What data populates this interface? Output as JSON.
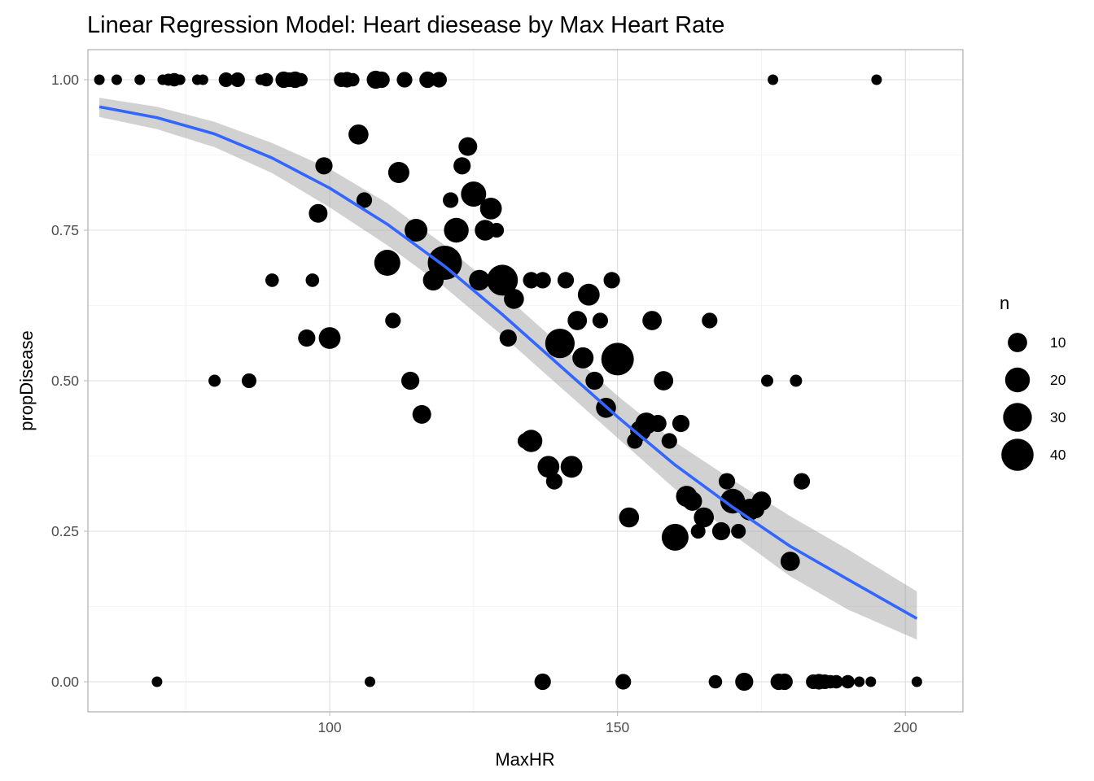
{
  "chart_data": {
    "type": "scatter",
    "title": "Linear Regression Model: Heart diesease by Max Heart Rate",
    "xlabel": "MaxHR",
    "ylabel": "propDisease",
    "xlim": [
      58,
      210
    ],
    "ylim": [
      -0.05,
      1.05
    ],
    "x_ticks": [
      100,
      150,
      200
    ],
    "x_tick_labels": [
      "100",
      "150",
      "200"
    ],
    "y_ticks": [
      0,
      0.25,
      0.5,
      0.75,
      1
    ],
    "y_tick_labels": [
      "0.00",
      "0.25",
      "0.50",
      "0.75",
      "1.00"
    ],
    "grid": true,
    "legend": {
      "title": "n",
      "placement": "right",
      "entries": [
        {
          "label": "10",
          "n": 10
        },
        {
          "label": "20",
          "n": 20
        },
        {
          "label": "30",
          "n": 30
        },
        {
          "label": "40",
          "n": 40
        }
      ]
    },
    "colors": {
      "points": "#000000",
      "fit_line": "#3366ff",
      "confidence_band": "#999999"
    },
    "fit": {
      "type": "logistic",
      "x": [
        60,
        70,
        80,
        90,
        100,
        110,
        120,
        130,
        140,
        150,
        160,
        170,
        180,
        190,
        202
      ],
      "y": [
        0.955,
        0.937,
        0.91,
        0.87,
        0.82,
        0.76,
        0.69,
        0.61,
        0.525,
        0.44,
        0.36,
        0.29,
        0.225,
        0.17,
        0.105
      ],
      "lower": [
        0.938,
        0.918,
        0.888,
        0.845,
        0.788,
        0.725,
        0.655,
        0.575,
        0.49,
        0.405,
        0.32,
        0.245,
        0.175,
        0.12,
        0.07
      ],
      "upper": [
        0.97,
        0.955,
        0.93,
        0.895,
        0.852,
        0.795,
        0.725,
        0.645,
        0.56,
        0.475,
        0.398,
        0.335,
        0.275,
        0.22,
        0.15
      ]
    },
    "points": [
      {
        "x": 60,
        "y": 1,
        "n": 1
      },
      {
        "x": 63,
        "y": 1,
        "n": 1
      },
      {
        "x": 67,
        "y": 1,
        "n": 1
      },
      {
        "x": 71,
        "y": 1,
        "n": 1
      },
      {
        "x": 72,
        "y": 1,
        "n": 2
      },
      {
        "x": 73,
        "y": 1,
        "n": 3
      },
      {
        "x": 74,
        "y": 1,
        "n": 1
      },
      {
        "x": 77,
        "y": 1,
        "n": 1
      },
      {
        "x": 78,
        "y": 1,
        "n": 1
      },
      {
        "x": 82,
        "y": 1,
        "n": 4
      },
      {
        "x": 84,
        "y": 1,
        "n": 4
      },
      {
        "x": 88,
        "y": 1,
        "n": 1
      },
      {
        "x": 89,
        "y": 1,
        "n": 3
      },
      {
        "x": 92,
        "y": 1,
        "n": 6
      },
      {
        "x": 93,
        "y": 1,
        "n": 4
      },
      {
        "x": 94,
        "y": 1,
        "n": 6
      },
      {
        "x": 95,
        "y": 1,
        "n": 3
      },
      {
        "x": 102,
        "y": 1,
        "n": 4
      },
      {
        "x": 103,
        "y": 1,
        "n": 5
      },
      {
        "x": 104,
        "y": 1,
        "n": 3
      },
      {
        "x": 108,
        "y": 1,
        "n": 8
      },
      {
        "x": 109,
        "y": 1,
        "n": 6
      },
      {
        "x": 113,
        "y": 1,
        "n": 5
      },
      {
        "x": 117,
        "y": 1,
        "n": 6
      },
      {
        "x": 119,
        "y": 1,
        "n": 5
      },
      {
        "x": 177,
        "y": 1,
        "n": 1
      },
      {
        "x": 195,
        "y": 1,
        "n": 1
      },
      {
        "x": 70,
        "y": 0,
        "n": 1
      },
      {
        "x": 107,
        "y": 0,
        "n": 1
      },
      {
        "x": 137,
        "y": 0,
        "n": 6
      },
      {
        "x": 151,
        "y": 0,
        "n": 5
      },
      {
        "x": 167,
        "y": 0,
        "n": 3
      },
      {
        "x": 172,
        "y": 0,
        "n": 8
      },
      {
        "x": 178,
        "y": 0,
        "n": 6
      },
      {
        "x": 179,
        "y": 0,
        "n": 6
      },
      {
        "x": 184,
        "y": 0,
        "n": 4
      },
      {
        "x": 185,
        "y": 0,
        "n": 5
      },
      {
        "x": 186,
        "y": 0,
        "n": 4
      },
      {
        "x": 187,
        "y": 0,
        "n": 3
      },
      {
        "x": 188,
        "y": 0,
        "n": 3
      },
      {
        "x": 190,
        "y": 0,
        "n": 3
      },
      {
        "x": 192,
        "y": 0,
        "n": 1
      },
      {
        "x": 194,
        "y": 0,
        "n": 1
      },
      {
        "x": 202,
        "y": 0,
        "n": 1
      },
      {
        "x": 99,
        "y": 0.857,
        "n": 7
      },
      {
        "x": 105,
        "y": 0.909,
        "n": 11
      },
      {
        "x": 106,
        "y": 0.8,
        "n": 5
      },
      {
        "x": 98,
        "y": 0.778,
        "n": 9
      },
      {
        "x": 90,
        "y": 0.667,
        "n": 3
      },
      {
        "x": 97,
        "y": 0.667,
        "n": 3
      },
      {
        "x": 96,
        "y": 0.571,
        "n": 7
      },
      {
        "x": 100,
        "y": 0.571,
        "n": 14
      },
      {
        "x": 80,
        "y": 0.5,
        "n": 2
      },
      {
        "x": 86,
        "y": 0.5,
        "n": 4
      },
      {
        "x": 110,
        "y": 0.696,
        "n": 23
      },
      {
        "x": 112,
        "y": 0.846,
        "n": 13
      },
      {
        "x": 111,
        "y": 0.6,
        "n": 5
      },
      {
        "x": 114,
        "y": 0.5,
        "n": 8
      },
      {
        "x": 116,
        "y": 0.444,
        "n": 9
      },
      {
        "x": 115,
        "y": 0.75,
        "n": 16
      },
      {
        "x": 118,
        "y": 0.667,
        "n": 12
      },
      {
        "x": 120,
        "y": 0.696,
        "n": 46
      },
      {
        "x": 121,
        "y": 0.8,
        "n": 5
      },
      {
        "x": 122,
        "y": 0.75,
        "n": 20
      },
      {
        "x": 123,
        "y": 0.857,
        "n": 7
      },
      {
        "x": 124,
        "y": 0.889,
        "n": 9
      },
      {
        "x": 125,
        "y": 0.81,
        "n": 21
      },
      {
        "x": 126,
        "y": 0.667,
        "n": 12
      },
      {
        "x": 127,
        "y": 0.75,
        "n": 12
      },
      {
        "x": 128,
        "y": 0.786,
        "n": 14
      },
      {
        "x": 129,
        "y": 0.75,
        "n": 4
      },
      {
        "x": 130,
        "y": 0.667,
        "n": 36
      },
      {
        "x": 131,
        "y": 0.571,
        "n": 7
      },
      {
        "x": 132,
        "y": 0.636,
        "n": 11
      },
      {
        "x": 134,
        "y": 0.4,
        "n": 5
      },
      {
        "x": 135,
        "y": 0.4,
        "n": 15
      },
      {
        "x": 135,
        "y": 0.667,
        "n": 6
      },
      {
        "x": 137,
        "y": 0.667,
        "n": 6
      },
      {
        "x": 138,
        "y": 0.357,
        "n": 14
      },
      {
        "x": 139,
        "y": 0.333,
        "n": 6
      },
      {
        "x": 140,
        "y": 0.562,
        "n": 32
      },
      {
        "x": 141,
        "y": 0.667,
        "n": 6
      },
      {
        "x": 142,
        "y": 0.357,
        "n": 14
      },
      {
        "x": 143,
        "y": 0.6,
        "n": 10
      },
      {
        "x": 144,
        "y": 0.538,
        "n": 13
      },
      {
        "x": 145,
        "y": 0.643,
        "n": 14
      },
      {
        "x": 146,
        "y": 0.5,
        "n": 8
      },
      {
        "x": 147,
        "y": 0.6,
        "n": 5
      },
      {
        "x": 148,
        "y": 0.455,
        "n": 11
      },
      {
        "x": 149,
        "y": 0.667,
        "n": 6
      },
      {
        "x": 150,
        "y": 0.536,
        "n": 41
      },
      {
        "x": 152,
        "y": 0.273,
        "n": 11
      },
      {
        "x": 153,
        "y": 0.4,
        "n": 5
      },
      {
        "x": 154,
        "y": 0.417,
        "n": 12
      },
      {
        "x": 155,
        "y": 0.429,
        "n": 14
      },
      {
        "x": 156,
        "y": 0.6,
        "n": 10
      },
      {
        "x": 157,
        "y": 0.429,
        "n": 7
      },
      {
        "x": 158,
        "y": 0.5,
        "n": 10
      },
      {
        "x": 159,
        "y": 0.4,
        "n": 5
      },
      {
        "x": 160,
        "y": 0.24,
        "n": 25
      },
      {
        "x": 161,
        "y": 0.429,
        "n": 7
      },
      {
        "x": 162,
        "y": 0.308,
        "n": 13
      },
      {
        "x": 163,
        "y": 0.3,
        "n": 10
      },
      {
        "x": 164,
        "y": 0.25,
        "n": 4
      },
      {
        "x": 165,
        "y": 0.273,
        "n": 11
      },
      {
        "x": 166,
        "y": 0.6,
        "n": 5
      },
      {
        "x": 168,
        "y": 0.25,
        "n": 8
      },
      {
        "x": 169,
        "y": 0.333,
        "n": 6
      },
      {
        "x": 170,
        "y": 0.3,
        "n": 20
      },
      {
        "x": 171,
        "y": 0.25,
        "n": 4
      },
      {
        "x": 173,
        "y": 0.286,
        "n": 14
      },
      {
        "x": 174,
        "y": 0.286,
        "n": 7
      },
      {
        "x": 175,
        "y": 0.3,
        "n": 10
      },
      {
        "x": 176,
        "y": 0.5,
        "n": 2
      },
      {
        "x": 180,
        "y": 0.2,
        "n": 10
      },
      {
        "x": 181,
        "y": 0.5,
        "n": 2
      },
      {
        "x": 182,
        "y": 0.333,
        "n": 6
      }
    ]
  }
}
